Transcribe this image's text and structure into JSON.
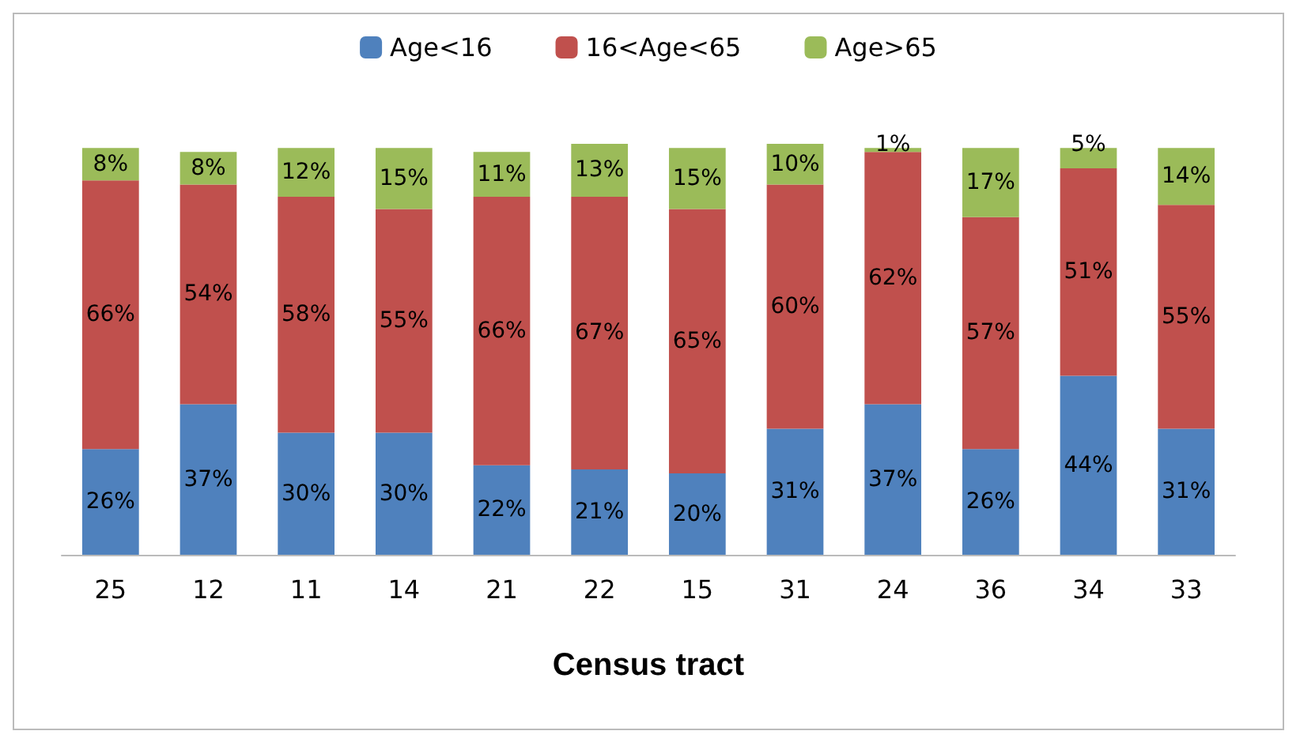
{
  "chart_data": {
    "type": "bar",
    "stacked": true,
    "xlabel": "Census tract",
    "legend": "top",
    "grid": false,
    "categories": [
      "25",
      "12",
      "11",
      "14",
      "21",
      "22",
      "15",
      "31",
      "24",
      "36",
      "34",
      "33"
    ],
    "series": [
      {
        "name": "Age<16",
        "color": "#4f81bd",
        "values": [
          26,
          37,
          30,
          30,
          22,
          21,
          20,
          31,
          37,
          26,
          44,
          31
        ],
        "value_labels": [
          "26%",
          "37%",
          "30%",
          "30%",
          "22%",
          "21%",
          "20%",
          "31%",
          "37%",
          "26%",
          "44%",
          "31%"
        ]
      },
      {
        "name": "16<Age<65",
        "color": "#c0504d",
        "values": [
          66,
          54,
          58,
          55,
          66,
          67,
          65,
          60,
          62,
          57,
          51,
          55
        ],
        "value_labels": [
          "66%",
          "54%",
          "58%",
          "55%",
          "66%",
          "67%",
          "65%",
          "60%",
          "62%",
          "57%",
          "51%",
          "55%"
        ]
      },
      {
        "name": "Age>65",
        "color": "#9bbb59",
        "values": [
          8,
          8,
          12,
          15,
          11,
          13,
          15,
          10,
          1,
          17,
          5,
          14
        ],
        "value_labels": [
          "8%",
          "8%",
          "12%",
          "15%",
          "11%",
          "13%",
          "15%",
          "10%",
          "1%",
          "17%",
          "5%",
          "14%"
        ]
      }
    ]
  }
}
